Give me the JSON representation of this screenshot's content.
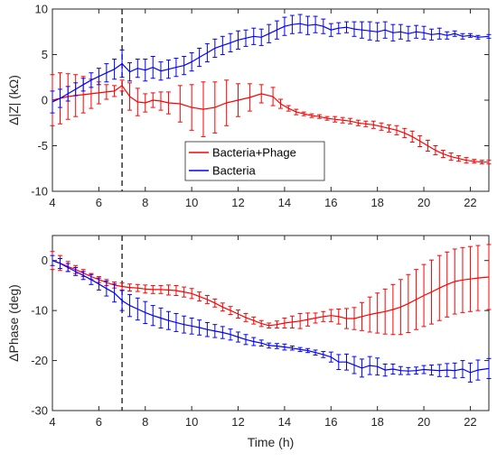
{
  "chart_data": [
    {
      "type": "line",
      "ylabel": "Δ|Z| (kΩ)",
      "xlim": [
        4,
        22.8
      ],
      "ylim": [
        -10,
        10
      ],
      "xticks": [
        "4",
        "6",
        "8",
        "10",
        "12",
        "14",
        "16",
        "18",
        "20",
        "22"
      ],
      "yticks": [
        "-10",
        "-5",
        "0",
        "5",
        "10"
      ],
      "marker_line_x": 7,
      "legend": {
        "placement": "center",
        "entries": [
          "Bacteria+Phage",
          "Bacteria"
        ]
      },
      "colors": {
        "Bacteria+Phage": "#ff0000",
        "Bacteria": "#0000ff"
      },
      "series": [
        {
          "name": "Bacteria+Phage",
          "x": [
            4.0,
            4.33,
            4.67,
            5.0,
            5.33,
            5.67,
            6.0,
            6.33,
            6.67,
            7.0,
            7.33,
            7.67,
            8.0,
            8.33,
            8.67,
            9.0,
            9.5,
            10.0,
            10.5,
            11.0,
            11.5,
            12.0,
            12.5,
            13.0,
            13.5,
            13.83,
            14.17,
            14.5,
            14.83,
            15.17,
            15.5,
            15.83,
            16.17,
            16.5,
            16.83,
            17.17,
            17.5,
            17.83,
            18.17,
            18.5,
            18.83,
            19.17,
            19.5,
            19.83,
            20.17,
            20.5,
            20.83,
            21.17,
            21.5,
            21.83,
            22.17,
            22.5,
            22.8
          ],
          "y": [
            0.0,
            0.2,
            0.4,
            0.5,
            0.6,
            0.7,
            0.8,
            0.9,
            1.0,
            1.6,
            0.4,
            -0.2,
            -0.3,
            0.0,
            -0.1,
            -0.3,
            -0.4,
            -0.8,
            -1.0,
            -0.8,
            -0.3,
            0.0,
            0.3,
            0.7,
            0.4,
            -0.4,
            -0.9,
            -1.3,
            -1.5,
            -1.7,
            -1.8,
            -2.0,
            -2.1,
            -2.2,
            -2.3,
            -2.5,
            -2.6,
            -2.7,
            -2.9,
            -3.1,
            -3.3,
            -3.6,
            -4.0,
            -4.5,
            -5.0,
            -5.5,
            -5.9,
            -6.2,
            -6.4,
            -6.6,
            -6.7,
            -6.8,
            -6.8
          ],
          "err": [
            2.8,
            2.8,
            2.5,
            2.3,
            2.0,
            1.6,
            1.2,
            0.8,
            0.6,
            0.6,
            1.5,
            1.5,
            1.0,
            0.8,
            1.0,
            1.2,
            2.0,
            2.5,
            3.0,
            2.8,
            2.5,
            1.8,
            1.5,
            1.0,
            1.0,
            0.5,
            0.3,
            0.3,
            0.2,
            0.2,
            0.2,
            0.2,
            0.3,
            0.3,
            0.3,
            0.3,
            0.3,
            0.4,
            0.4,
            0.4,
            0.5,
            0.5,
            0.6,
            0.6,
            0.6,
            0.5,
            0.4,
            0.4,
            0.3,
            0.3,
            0.2,
            0.2,
            0.2
          ]
        },
        {
          "name": "Bacteria",
          "x": [
            4.0,
            4.33,
            4.67,
            5.0,
            5.33,
            5.67,
            6.0,
            6.33,
            6.67,
            7.0,
            7.33,
            7.67,
            8.0,
            8.33,
            8.67,
            9.0,
            9.33,
            9.67,
            10.0,
            10.33,
            10.67,
            11.0,
            11.33,
            11.67,
            12.0,
            12.33,
            12.67,
            13.0,
            13.33,
            13.67,
            14.0,
            14.33,
            14.67,
            15.0,
            15.33,
            15.67,
            16.0,
            16.33,
            16.67,
            17.0,
            17.33,
            17.67,
            18.0,
            18.33,
            18.67,
            19.0,
            19.33,
            19.67,
            20.0,
            20.33,
            20.67,
            21.0,
            21.33,
            21.67,
            22.0,
            22.33,
            22.8
          ],
          "y": [
            -0.2,
            0.2,
            0.7,
            1.2,
            1.7,
            2.2,
            2.6,
            3.0,
            3.4,
            4.0,
            3.1,
            3.5,
            3.3,
            3.6,
            3.2,
            3.4,
            3.6,
            3.8,
            4.2,
            4.7,
            5.2,
            5.7,
            6.0,
            6.3,
            6.6,
            6.8,
            7.0,
            6.9,
            7.3,
            7.7,
            8.1,
            8.3,
            8.4,
            8.2,
            8.3,
            8.1,
            7.7,
            7.9,
            8.0,
            7.8,
            7.7,
            7.6,
            7.5,
            7.7,
            7.4,
            7.5,
            7.3,
            7.5,
            7.4,
            7.2,
            7.3,
            7.1,
            7.3,
            7.0,
            7.1,
            6.9,
            7.0
          ],
          "err": [
            1.2,
            1.0,
            0.8,
            0.7,
            0.7,
            0.8,
            0.9,
            1.0,
            1.1,
            1.5,
            1.0,
            1.0,
            1.2,
            1.2,
            1.0,
            1.0,
            1.0,
            1.0,
            1.0,
            1.0,
            1.0,
            1.0,
            1.0,
            1.0,
            1.0,
            0.9,
            0.9,
            0.9,
            1.0,
            1.0,
            1.0,
            1.0,
            1.0,
            1.0,
            0.9,
            0.8,
            0.7,
            0.6,
            0.6,
            0.8,
            0.9,
            1.0,
            1.0,
            0.9,
            0.9,
            0.8,
            0.8,
            0.7,
            0.7,
            0.6,
            0.6,
            0.4,
            0.3,
            0.3,
            0.2,
            0.2,
            0.2
          ]
        }
      ]
    },
    {
      "type": "line",
      "xlabel": "Time (h)",
      "ylabel": "ΔPhase (deg)",
      "xlim": [
        4,
        22.8
      ],
      "ylim": [
        -30,
        5
      ],
      "xticks": [
        "4",
        "6",
        "8",
        "10",
        "12",
        "14",
        "16",
        "18",
        "20",
        "22"
      ],
      "yticks": [
        "-30",
        "-20",
        "-10",
        "0"
      ],
      "marker_line_x": 7,
      "colors": {
        "Bacteria+Phage": "#ff0000",
        "Bacteria": "#0000ff"
      },
      "series": [
        {
          "name": "Bacteria+Phage",
          "x": [
            4.0,
            4.33,
            4.67,
            5.0,
            5.33,
            5.67,
            6.0,
            6.33,
            6.67,
            7.0,
            7.33,
            7.67,
            8.0,
            8.33,
            8.67,
            9.0,
            9.33,
            9.67,
            10.0,
            10.33,
            10.67,
            11.0,
            11.33,
            11.67,
            12.0,
            12.33,
            12.67,
            13.0,
            13.33,
            13.67,
            14.0,
            14.33,
            14.67,
            15.0,
            15.33,
            15.67,
            16.0,
            16.33,
            16.67,
            17.0,
            17.33,
            17.67,
            18.0,
            18.33,
            18.67,
            19.0,
            19.33,
            19.67,
            20.0,
            20.33,
            20.67,
            21.0,
            21.33,
            21.67,
            22.0,
            22.33,
            22.8
          ],
          "y": [
            0.0,
            -0.5,
            -1.2,
            -1.8,
            -2.5,
            -3.2,
            -3.8,
            -4.4,
            -4.9,
            -5.2,
            -5.4,
            -5.5,
            -5.7,
            -5.8,
            -5.8,
            -5.9,
            -6.0,
            -6.3,
            -6.6,
            -7.2,
            -7.8,
            -8.5,
            -9.3,
            -10.0,
            -10.7,
            -11.4,
            -12.0,
            -12.6,
            -13.0,
            -12.8,
            -12.5,
            -12.3,
            -12.1,
            -11.8,
            -11.5,
            -11.2,
            -11.0,
            -11.2,
            -11.6,
            -11.6,
            -11.2,
            -10.8,
            -10.5,
            -10.2,
            -9.8,
            -9.3,
            -8.6,
            -7.8,
            -7.0,
            -6.3,
            -5.5,
            -4.8,
            -4.2,
            -3.9,
            -3.7,
            -3.5,
            -3.3
          ],
          "err": [
            1.8,
            1.5,
            1.0,
            0.8,
            0.7,
            0.6,
            0.6,
            0.6,
            0.6,
            0.7,
            0.7,
            0.7,
            0.8,
            0.8,
            0.8,
            1.0,
            1.0,
            1.0,
            1.0,
            0.9,
            0.8,
            0.8,
            0.8,
            0.8,
            0.8,
            0.8,
            0.7,
            0.6,
            0.5,
            0.7,
            1.0,
            1.2,
            1.5,
            1.3,
            1.0,
            1.0,
            1.2,
            1.5,
            2.0,
            2.2,
            2.8,
            3.5,
            4.0,
            4.5,
            5.0,
            5.5,
            5.8,
            6.0,
            6.2,
            6.4,
            6.5,
            6.5,
            6.5,
            6.5,
            6.5,
            6.5,
            6.5
          ]
        },
        {
          "name": "Bacteria",
          "x": [
            4.0,
            4.33,
            4.67,
            5.0,
            5.33,
            5.67,
            6.0,
            6.33,
            6.67,
            7.0,
            7.33,
            7.67,
            8.0,
            8.33,
            8.67,
            9.0,
            9.33,
            9.67,
            10.0,
            10.33,
            10.67,
            11.0,
            11.33,
            11.67,
            12.0,
            12.33,
            12.67,
            13.0,
            13.33,
            13.67,
            14.0,
            14.33,
            14.67,
            15.0,
            15.33,
            15.67,
            16.0,
            16.33,
            16.67,
            17.0,
            17.33,
            17.67,
            18.0,
            18.33,
            18.67,
            19.0,
            19.33,
            19.67,
            20.0,
            20.33,
            20.67,
            21.0,
            21.33,
            21.67,
            22.0,
            22.33,
            22.8
          ],
          "y": [
            0.0,
            -0.6,
            -1.4,
            -2.2,
            -3.0,
            -3.8,
            -4.7,
            -5.6,
            -6.5,
            -8.0,
            -9.0,
            -9.7,
            -10.4,
            -11.0,
            -11.5,
            -12.0,
            -12.4,
            -12.8,
            -13.1,
            -13.4,
            -13.8,
            -14.1,
            -14.4,
            -14.8,
            -15.3,
            -15.8,
            -16.2,
            -16.5,
            -17.0,
            -17.1,
            -17.3,
            -17.5,
            -17.8,
            -18.0,
            -18.4,
            -18.8,
            -19.3,
            -20.3,
            -20.3,
            -20.9,
            -21.5,
            -21.0,
            -21.2,
            -21.9,
            -21.7,
            -22.0,
            -22.1,
            -22.0,
            -21.8,
            -21.9,
            -22.0,
            -21.9,
            -22.0,
            -21.7,
            -22.4,
            -21.9,
            -21.6
          ],
          "err": [
            1.0,
            1.0,
            0.8,
            0.8,
            0.8,
            1.0,
            1.2,
            1.5,
            1.8,
            2.0,
            2.2,
            2.2,
            2.2,
            2.0,
            2.0,
            1.8,
            1.8,
            1.7,
            1.6,
            1.5,
            1.4,
            1.3,
            1.2,
            1.1,
            1.0,
            1.0,
            0.8,
            0.6,
            0.5,
            0.5,
            0.6,
            0.4,
            0.4,
            0.4,
            0.5,
            0.6,
            1.0,
            1.5,
            1.6,
            1.7,
            1.8,
            1.8,
            1.7,
            1.2,
            1.0,
            0.8,
            0.7,
            0.7,
            0.8,
            1.0,
            1.2,
            1.3,
            1.5,
            1.7,
            1.9,
            2.0,
            2.0
          ]
        }
      ]
    }
  ]
}
